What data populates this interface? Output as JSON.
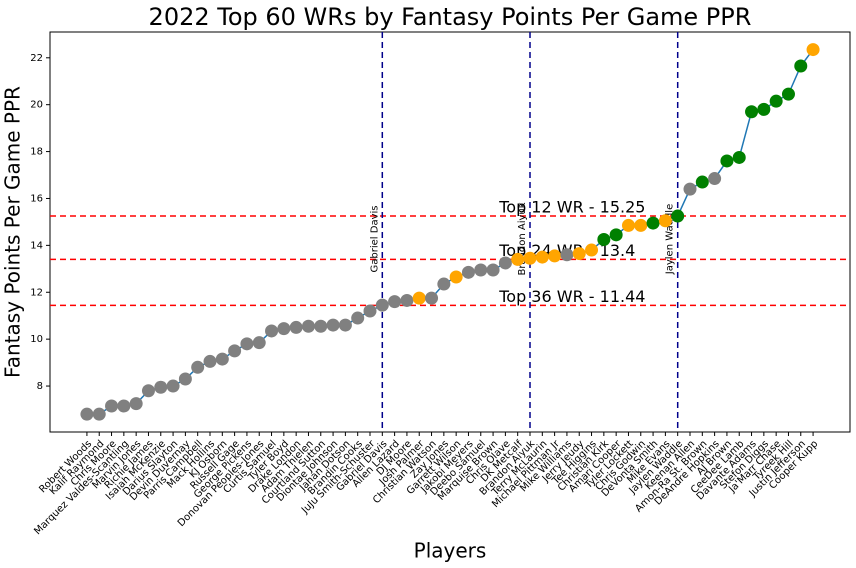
{
  "chart_data": {
    "type": "line",
    "title": "2022 Top 60 WRs by Fantasy Points Per Game PPR",
    "x_label": "Players",
    "y_label": "Fantasy Points Per Game PPR",
    "categories": [
      "Robert Woods",
      "Kalif Raymond",
      "Chris Moore",
      "Marquez Valdes-Scantling",
      "Marvin Jones",
      "Richie James",
      "Isaiah McKenzie",
      "Darius Slayton",
      "Devin Duvernay",
      "Parris Campbell",
      "Mack Hollins",
      "KJ Osborn",
      "Russell Gage",
      "George Pickens",
      "Donovan Peoples-Jones",
      "Curtis Samuel",
      "Tyler Boyd",
      "Drake London",
      "Adam Thielen",
      "Courtland Sutton",
      "Diontae Johnson",
      "Jahan Dotson",
      "Brandin Cooks",
      "JuJu Smith-Schuster",
      "Gabriel Davis",
      "Allen Lazard",
      "DJ Moore",
      "Josh Palmer",
      "Christian Watson",
      "Zay Jones",
      "Garrett Wilson",
      "Jakobi Meyers",
      "Deebo Samuel",
      "Marquise Brown",
      "Chris Olave",
      "DK Metcalf",
      "Brandon Aiyuk",
      "Terry McLaurin",
      "Michael Pittman Jr",
      "Mike Williams",
      "Jerry Jeudy",
      "Tee Higgins",
      "Christian Kirk",
      "Amari Cooper",
      "Tyler Lockett",
      "Chris Godwin",
      "DeVonta Smith",
      "Mike Evans",
      "Jaylen Waddle",
      "Keenan Allen",
      "Amon-Ra St. Brown",
      "DeAndre Hopkins",
      "AJ Brown",
      "CeeDee Lamb",
      "Davante Adams",
      "Stefon Diggs",
      "Ja'Marr Chase",
      "Tyreek Hill",
      "Justin Jefferson",
      "Cooper Kupp"
    ],
    "values": [
      6.8,
      6.8,
      7.15,
      7.15,
      7.25,
      7.8,
      7.95,
      8.0,
      8.3,
      8.8,
      9.05,
      9.15,
      9.5,
      9.8,
      9.85,
      10.35,
      10.45,
      10.5,
      10.55,
      10.55,
      10.6,
      10.6,
      10.9,
      11.2,
      11.45,
      11.6,
      11.65,
      11.75,
      11.75,
      12.35,
      12.65,
      12.85,
      12.95,
      12.95,
      13.25,
      13.4,
      13.45,
      13.5,
      13.55,
      13.6,
      13.65,
      13.8,
      14.25,
      14.45,
      14.85,
      14.85,
      14.95,
      15.05,
      15.25,
      16.4,
      16.7,
      16.85,
      17.6,
      17.75,
      19.7,
      19.8,
      20.15,
      20.45,
      21.65,
      22.35
    ],
    "colors": [
      "gray",
      "gray",
      "gray",
      "gray",
      "gray",
      "gray",
      "gray",
      "gray",
      "gray",
      "gray",
      "gray",
      "gray",
      "gray",
      "gray",
      "gray",
      "gray",
      "gray",
      "gray",
      "gray",
      "gray",
      "gray",
      "gray",
      "gray",
      "gray",
      "gray",
      "gray",
      "gray",
      "orange",
      "gray",
      "gray",
      "orange",
      "gray",
      "gray",
      "gray",
      "gray",
      "orange",
      "orange",
      "orange",
      "orange",
      "gray",
      "orange",
      "orange",
      "green",
      "green",
      "orange",
      "orange",
      "green",
      "orange",
      "green",
      "gray",
      "green",
      "gray",
      "green",
      "green",
      "green",
      "green",
      "green",
      "green",
      "green",
      "orange"
    ],
    "line_color": "#1f77b4",
    "xlim": [
      -3,
      62
    ],
    "ylim": [
      6.04,
      23.1
    ],
    "yticks": [
      8,
      10,
      12,
      14,
      16,
      18,
      20,
      22
    ],
    "hlines": [
      {
        "y": 15.25,
        "label": "Top 12 WR - 15.25",
        "color": "red"
      },
      {
        "y": 13.4,
        "label": "Top 24 WR - 13.4",
        "color": "red"
      },
      {
        "y": 11.44,
        "label": "Top 36 WR - 11.44",
        "color": "red"
      }
    ],
    "vlines": [
      {
        "label": "Gabriel Davis",
        "color": "#00008b"
      },
      {
        "label": "Brandon Aiyuk",
        "color": "#00008b"
      },
      {
        "label": "Jaylen Waddle",
        "color": "#00008b"
      }
    ]
  }
}
